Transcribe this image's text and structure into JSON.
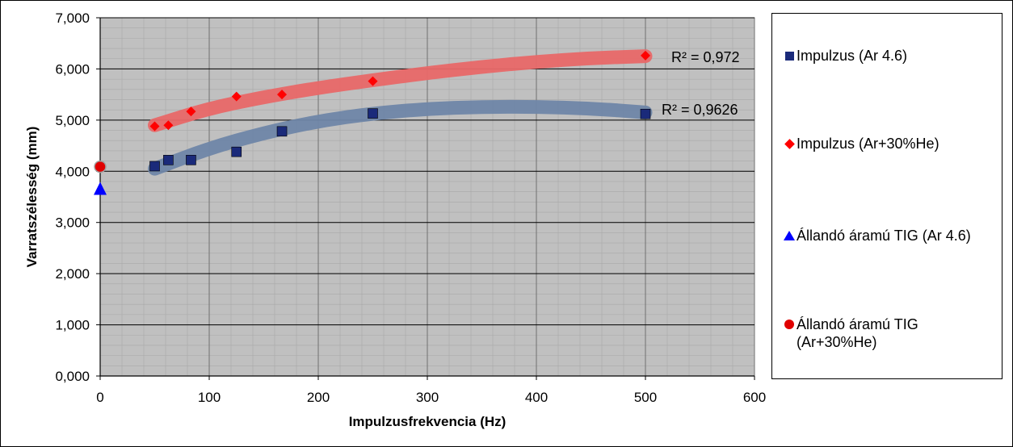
{
  "chart_data": {
    "type": "scatter",
    "xlabel": "Impulzusfrekvencia (Hz)",
    "ylabel": "Varratszélesség (mm)",
    "xlim": [
      0,
      600
    ],
    "ylim": [
      0,
      7
    ],
    "x_ticks": [
      "0",
      "100",
      "200",
      "300",
      "400",
      "500",
      "600"
    ],
    "y_ticks": [
      "0,000",
      "1,000",
      "2,000",
      "3,000",
      "4,000",
      "5,000",
      "6,000",
      "7,000"
    ],
    "grid": true,
    "legend_position": "right",
    "series": [
      {
        "name": "Impulzus (Ar 4.6)",
        "marker": "square",
        "color": "#1a2a7a",
        "points": [
          [
            50,
            4.1
          ],
          [
            62.5,
            4.22
          ],
          [
            83.3,
            4.22
          ],
          [
            125,
            4.38
          ],
          [
            166.7,
            4.78
          ],
          [
            250,
            5.13
          ],
          [
            500,
            5.12
          ]
        ],
        "trendline": {
          "type": "polynomial",
          "color": "#6f86a8",
          "r2_label": "R² = 0,9626",
          "curve": [
            [
              50,
              4.05
            ],
            [
              100,
              4.45
            ],
            [
              150,
              4.75
            ],
            [
              200,
              4.98
            ],
            [
              250,
              5.13
            ],
            [
              300,
              5.22
            ],
            [
              350,
              5.26
            ],
            [
              400,
              5.26
            ],
            [
              450,
              5.23
            ],
            [
              500,
              5.15
            ]
          ]
        }
      },
      {
        "name": "Impulzus (Ar+30%He)",
        "marker": "diamond",
        "color": "#ff0000",
        "points": [
          [
            50,
            4.88
          ],
          [
            62.5,
            4.9
          ],
          [
            83.3,
            5.17
          ],
          [
            125,
            5.46
          ],
          [
            166.7,
            5.5
          ],
          [
            250,
            5.76
          ],
          [
            500,
            6.26
          ]
        ],
        "trendline": {
          "type": "logarithmic",
          "color": "#e86868",
          "r2_label": "R² = 0,972",
          "curve": [
            [
              50,
              4.9
            ],
            [
              100,
              5.23
            ],
            [
              150,
              5.45
            ],
            [
              200,
              5.63
            ],
            [
              250,
              5.78
            ],
            [
              300,
              5.92
            ],
            [
              350,
              6.04
            ],
            [
              400,
              6.14
            ],
            [
              450,
              6.21
            ],
            [
              500,
              6.25
            ]
          ]
        }
      },
      {
        "name": "Állandó áramú TIG (Ar 4.6)",
        "marker": "triangle",
        "color": "#0000ff",
        "points": [
          [
            0,
            3.65
          ]
        ]
      },
      {
        "name": "Állandó áramú TIG\n(Ar+30%He)",
        "marker": "circle",
        "color": "#e00000",
        "points": [
          [
            0,
            4.09
          ]
        ]
      }
    ]
  }
}
